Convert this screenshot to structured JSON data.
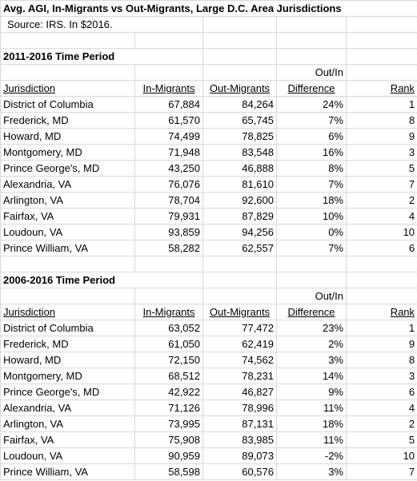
{
  "title": "Avg. AGI, In-Migrants vs Out-Migrants, Large D.C. Area Jurisdictions",
  "source": "Source: IRS.  In $2016.",
  "sections": [
    {
      "period": "2011-2016 Time Period",
      "header_top": "Out/In",
      "headers": [
        "Jurisdiction",
        "In-Migrants",
        "Out-Migrants",
        "Difference",
        "Rank"
      ],
      "rows": [
        [
          "District of Columbia",
          "67,884",
          "84,264",
          "24%",
          "1"
        ],
        [
          "Frederick, MD",
          "61,570",
          "65,745",
          "7%",
          "8"
        ],
        [
          "Howard, MD",
          "74,499",
          "78,825",
          "6%",
          "9"
        ],
        [
          "Montgomery, MD",
          "71,948",
          "83,548",
          "16%",
          "3"
        ],
        [
          "Prince George's, MD",
          "43,250",
          "46,888",
          "8%",
          "5"
        ],
        [
          "Alexandria, VA",
          "76,076",
          "81,610",
          "7%",
          "7"
        ],
        [
          "Arlington, VA",
          "78,704",
          "92,600",
          "18%",
          "2"
        ],
        [
          "Fairfax, VA",
          "79,931",
          "87,829",
          "10%",
          "4"
        ],
        [
          "Loudoun, VA",
          "93,859",
          "94,256",
          "0%",
          "10"
        ],
        [
          "Prince William, VA",
          "58,282",
          "62,557",
          "7%",
          "6"
        ]
      ]
    },
    {
      "period": "2006-2016 Time Period",
      "header_top": "Out/In",
      "headers": [
        "Jurisdiction",
        "In-Migrants",
        "Out-Migrants",
        "Difference",
        "Rank"
      ],
      "rows": [
        [
          "District of Columbia",
          "63,052",
          "77,472",
          "23%",
          "1"
        ],
        [
          "Frederick, MD",
          "61,050",
          "62,419",
          "2%",
          "9"
        ],
        [
          "Howard, MD",
          "72,150",
          "74,562",
          "3%",
          "8"
        ],
        [
          "Montgomery, MD",
          "68,512",
          "78,231",
          "14%",
          "3"
        ],
        [
          "Prince George's, MD",
          "42,922",
          "46,827",
          "9%",
          "6"
        ],
        [
          "Alexandria, VA",
          "71,126",
          "78,996",
          "11%",
          "4"
        ],
        [
          "Arlington, VA",
          "73,995",
          "87,131",
          "18%",
          "2"
        ],
        [
          "Fairfax, VA",
          "75,908",
          "83,985",
          "11%",
          "5"
        ],
        [
          "Loudoun, VA",
          "90,959",
          "89,073",
          "-2%",
          "10"
        ],
        [
          "Prince William, VA",
          "58,598",
          "60,576",
          "3%",
          "7"
        ]
      ]
    }
  ]
}
